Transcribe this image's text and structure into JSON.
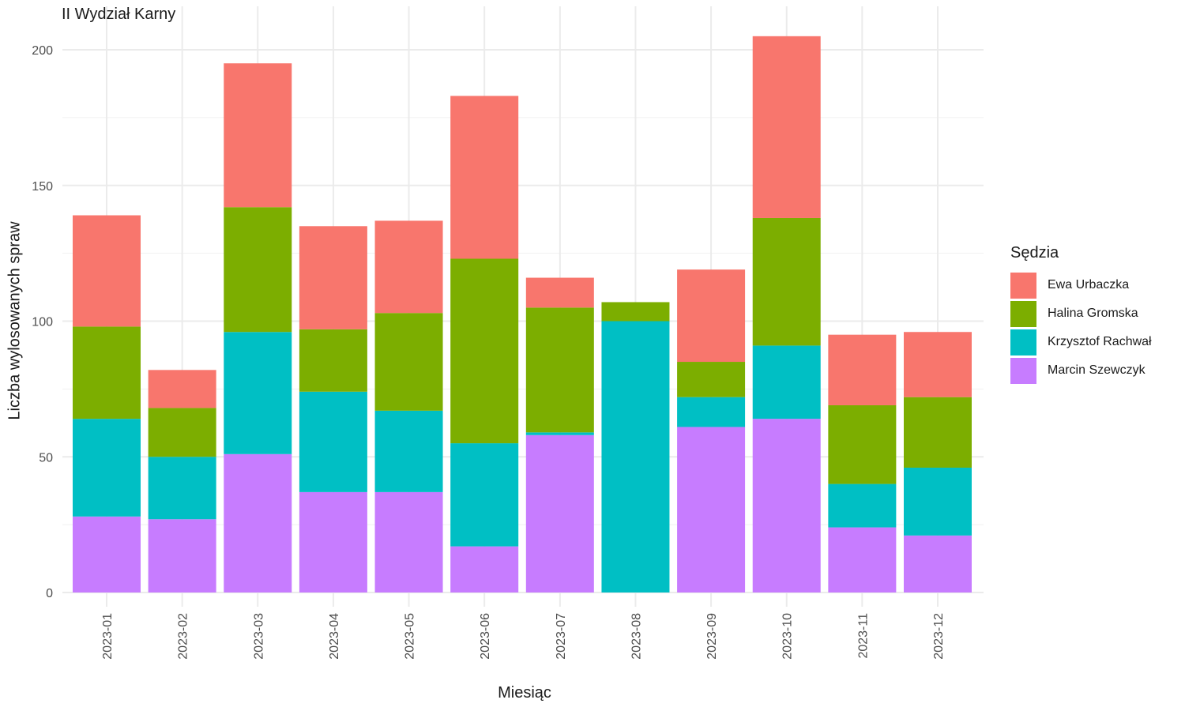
{
  "chart_data": {
    "type": "bar",
    "stacked": true,
    "title": "II Wydział Karny",
    "xlabel": "Miesiąc",
    "ylabel": "Liczba wylosowanych spraw",
    "ylim": [
      0,
      210
    ],
    "yticks": [
      0,
      50,
      100,
      150,
      200
    ],
    "grid": true,
    "legend_title": "Sędzia",
    "legend_position": "right",
    "categories": [
      "2023-01",
      "2023-02",
      "2023-03",
      "2023-04",
      "2023-05",
      "2023-06",
      "2023-07",
      "2023-08",
      "2023-09",
      "2023-10",
      "2023-11",
      "2023-12"
    ],
    "series": [
      {
        "name": "Marcin Szewczyk",
        "color": "#C77CFF",
        "values": [
          28,
          27,
          51,
          37,
          37,
          17,
          58,
          0,
          61,
          64,
          24,
          21
        ]
      },
      {
        "name": "Krzysztof Rachwał",
        "color": "#00BFC4",
        "values": [
          36,
          23,
          45,
          37,
          30,
          38,
          1,
          100,
          11,
          27,
          16,
          25
        ]
      },
      {
        "name": "Halina Gromska",
        "color": "#7CAE00",
        "values": [
          34,
          18,
          46,
          23,
          36,
          68,
          46,
          7,
          13,
          47,
          29,
          26
        ]
      },
      {
        "name": "Ewa Urbaczka",
        "color": "#F8766D",
        "values": [
          41,
          14,
          53,
          38,
          34,
          60,
          11,
          0,
          34,
          67,
          26,
          24
        ]
      }
    ],
    "legend_order": [
      "Ewa Urbaczka",
      "Halina Gromska",
      "Krzysztof Rachwał",
      "Marcin Szewczyk"
    ]
  }
}
